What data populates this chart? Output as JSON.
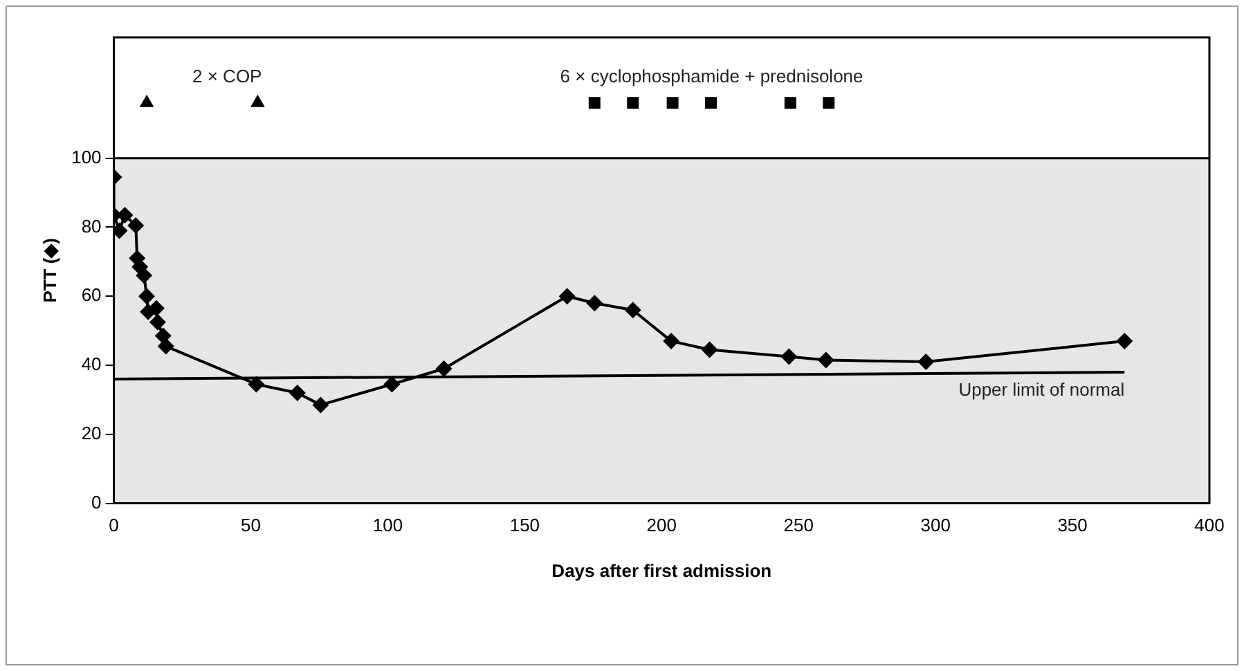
{
  "chart_data": {
    "type": "line",
    "xlabel": "Days after first admission",
    "ylabel": "PTT (◆)",
    "xlim": [
      0,
      400
    ],
    "xticks": [
      0,
      50,
      100,
      150,
      200,
      250,
      300,
      350,
      400
    ],
    "ylim": [
      0,
      135
    ],
    "yticks": [
      0,
      20,
      40,
      60,
      80,
      100
    ],
    "grid": false,
    "legend": false,
    "bands": [
      {
        "axis": "y",
        "from": 0,
        "to": 100,
        "color": "#e6e6e6"
      }
    ],
    "ref_lines": [
      {
        "axis": "y",
        "value": 100,
        "color": "#000000"
      }
    ],
    "series": [
      {
        "color": "#000000",
        "marker": "diamond",
        "x": [
          0,
          0,
          2,
          4,
          8,
          8.5,
          9.5,
          11,
          12,
          12.5,
          15.5,
          16,
          18,
          19,
          52,
          67,
          75.5,
          101.5,
          120.5,
          165.5,
          175.5,
          189.5,
          203.5,
          217.5,
          246.5,
          260,
          296.5,
          369
        ],
        "values": [
          94.5,
          83.5,
          79,
          83.5,
          80.5,
          71,
          68.5,
          66,
          60,
          55.5,
          56.5,
          52.5,
          48.5,
          45.5,
          34.5,
          32,
          28.5,
          34.5,
          39,
          60,
          58,
          56,
          47,
          44.5,
          42.5,
          41.5,
          41,
          47
        ]
      },
      {
        "type": "line",
        "color": "#000000",
        "marker": "none",
        "x": [
          0,
          369
        ],
        "values": [
          36,
          38
        ]
      },
      {
        "type": "scatter",
        "color": "#000000",
        "marker": "triangle",
        "x": [
          12,
          52.5
        ],
        "values": [
          116,
          116
        ]
      },
      {
        "type": "scatter",
        "color": "#000000",
        "marker": "square",
        "x": [
          175.5,
          189.5,
          204,
          218,
          247,
          261
        ],
        "values": [
          116,
          116,
          116,
          116,
          116,
          116
        ]
      }
    ],
    "annotations": [
      "2 × COP",
      "6 × cyclophosphamide + prednisolone",
      {
        "text": "Upper limit of normal",
        "x": 369,
        "y": 38
      }
    ]
  }
}
